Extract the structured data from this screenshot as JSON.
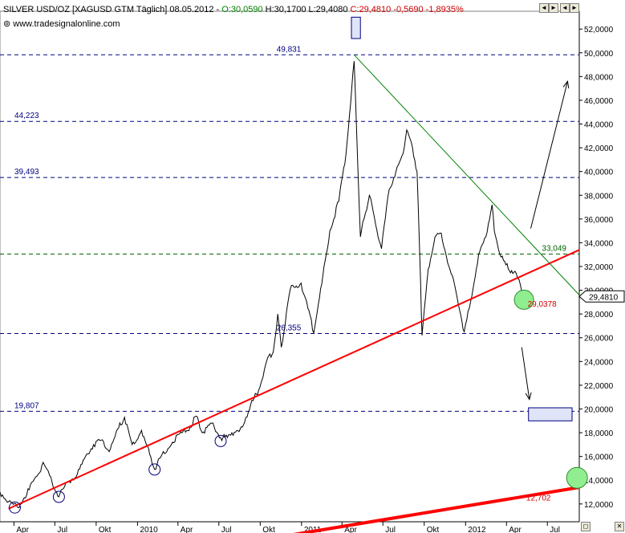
{
  "header": {
    "symbol": "SILVER USD/OZ [XAGUSD GTM  Täglich] 08.05.2012 - ",
    "open": "O:30,0590",
    "high_low": " H:30,1700 L:29,4080 ",
    "close": "C:29,4810 -0,5690 -1,8935%",
    "source": "www.tradesignalonline.com"
  },
  "controls": [
    "◄",
    "►",
    "◄",
    "►",
    "◻",
    "✕"
  ],
  "colors": {
    "price": "#000000",
    "trend_support": "#ff0000",
    "trend_resistance": "#008000",
    "level": "#000080",
    "target_box": "#e0e4f8",
    "marker": "#90ee90"
  },
  "chart_data": {
    "type": "line",
    "title": "SILVER USD/OZ [XAGUSD GTM  Täglich] 08.05.2012",
    "y_axis_side": "right",
    "ylim": [
      10.5,
      53.5
    ],
    "y_ticks": [
      "12,0000",
      "14,0000",
      "16,0000",
      "18,0000",
      "20,0000",
      "22,0000",
      "24,0000",
      "26,0000",
      "28,0000",
      "30,0000",
      "32,0000",
      "34,0000",
      "36,0000",
      "38,0000",
      "40,0000",
      "42,0000",
      "44,0000",
      "46,0000",
      "48,0000",
      "50,0000",
      "52,0000"
    ],
    "y_tick_values": [
      12,
      14,
      16,
      18,
      20,
      22,
      24,
      26,
      28,
      30,
      32,
      34,
      36,
      38,
      40,
      42,
      44,
      46,
      48,
      50,
      52
    ],
    "x_ticks": [
      "Apr",
      "Jul",
      "Okt",
      "2010",
      "Apr",
      "Jul",
      "Okt",
      "2011",
      "Apr",
      "Jul",
      "Okt",
      "2012",
      "Apr",
      "Jul"
    ],
    "x_tick_dates": [
      "2009-04-01",
      "2009-07-01",
      "2009-10-01",
      "2010-01-01",
      "2010-04-01",
      "2010-07-01",
      "2010-10-01",
      "2011-01-01",
      "2011-04-01",
      "2011-07-01",
      "2011-10-01",
      "2012-01-01",
      "2012-04-01",
      "2012-07-01"
    ],
    "x_range": [
      "2009-03-01",
      "2012-09-10"
    ],
    "current_price": "29,4810",
    "current_value": 29.481,
    "series": [
      {
        "points": [
          [
            "2009-03-01",
            13.0
          ],
          [
            "2009-03-20",
            12.2
          ],
          [
            "2009-04-10",
            11.7
          ],
          [
            "2009-05-05",
            13.2
          ],
          [
            "2009-05-25",
            14.5
          ],
          [
            "2009-06-05",
            15.5
          ],
          [
            "2009-06-25",
            13.8
          ],
          [
            "2009-07-10",
            12.6
          ],
          [
            "2009-07-28",
            13.8
          ],
          [
            "2009-08-20",
            14.5
          ],
          [
            "2009-09-10",
            16.2
          ],
          [
            "2009-09-25",
            17.0
          ],
          [
            "2009-10-15",
            17.4
          ],
          [
            "2009-10-30",
            16.4
          ],
          [
            "2009-11-20",
            18.4
          ],
          [
            "2009-12-03",
            19.3
          ],
          [
            "2009-12-20",
            17.0
          ],
          [
            "2010-01-10",
            18.2
          ],
          [
            "2010-01-28",
            16.2
          ],
          [
            "2010-02-08",
            14.9
          ],
          [
            "2010-02-25",
            16.2
          ],
          [
            "2010-03-20",
            17.2
          ],
          [
            "2010-04-10",
            18.0
          ],
          [
            "2010-04-28",
            18.5
          ],
          [
            "2010-05-12",
            19.4
          ],
          [
            "2010-05-25",
            18.0
          ],
          [
            "2010-06-15",
            18.8
          ],
          [
            "2010-07-05",
            17.6
          ],
          [
            "2010-07-20",
            17.6
          ],
          [
            "2010-07-30",
            18.0
          ],
          [
            "2010-08-15",
            18.1
          ],
          [
            "2010-08-30",
            19.3
          ],
          [
            "2010-09-15",
            20.7
          ],
          [
            "2010-09-30",
            21.8
          ],
          [
            "2010-10-15",
            24.0
          ],
          [
            "2010-10-30",
            24.8
          ],
          [
            "2010-11-09",
            28.0
          ],
          [
            "2010-11-17",
            25.2
          ],
          [
            "2010-12-07",
            30.1
          ],
          [
            "2010-12-31",
            30.6
          ],
          [
            "2011-01-15",
            28.5
          ],
          [
            "2011-01-28",
            26.4
          ],
          [
            "2011-02-15",
            30.5
          ],
          [
            "2011-03-05",
            35.0
          ],
          [
            "2011-03-25",
            37.5
          ],
          [
            "2011-04-10",
            41.5
          ],
          [
            "2011-04-28",
            49.3
          ],
          [
            "2011-05-03",
            44.0
          ],
          [
            "2011-05-12",
            34.5
          ],
          [
            "2011-05-20",
            36.0
          ],
          [
            "2011-06-01",
            38.0
          ],
          [
            "2011-06-15",
            35.5
          ],
          [
            "2011-06-28",
            33.5
          ],
          [
            "2011-07-15",
            38.5
          ],
          [
            "2011-07-30",
            40.0
          ],
          [
            "2011-08-15",
            41.5
          ],
          [
            "2011-08-23",
            43.5
          ],
          [
            "2011-09-05",
            42.0
          ],
          [
            "2011-09-15",
            40.0
          ],
          [
            "2011-09-23",
            30.5
          ],
          [
            "2011-09-26",
            26.2
          ],
          [
            "2011-10-10",
            31.8
          ],
          [
            "2011-10-25",
            34.5
          ],
          [
            "2011-11-08",
            34.8
          ],
          [
            "2011-11-25",
            32.0
          ],
          [
            "2011-12-10",
            30.0
          ],
          [
            "2011-12-29",
            26.5
          ],
          [
            "2012-01-15",
            29.5
          ],
          [
            "2012-01-30",
            33.0
          ],
          [
            "2012-02-15",
            34.5
          ],
          [
            "2012-02-29",
            37.2
          ],
          [
            "2012-03-05",
            35.0
          ],
          [
            "2012-03-20",
            32.8
          ],
          [
            "2012-04-05",
            31.8
          ],
          [
            "2012-04-20",
            31.6
          ],
          [
            "2012-05-04",
            30.1
          ],
          [
            "2012-05-08",
            29.48
          ]
        ]
      }
    ],
    "horizontal_levels": [
      {
        "label": "49,831",
        "value": 49.831,
        "label_pos": "center"
      },
      {
        "label": "44,223",
        "value": 44.223,
        "label_pos": "left"
      },
      {
        "label": "39,493",
        "value": 39.493,
        "label_pos": "left"
      },
      {
        "label": "33,049",
        "value": 33.049,
        "label_pos": "right"
      },
      {
        "label": "26,355",
        "value": 26.355,
        "label_pos": "center"
      },
      {
        "label": "19,807",
        "value": 19.807,
        "label_pos": "left"
      }
    ],
    "trend_lines": [
      {
        "name": "support",
        "color": "#ff0000",
        "from": [
          "2009-03-20",
          11.6
        ],
        "to": [
          "2012-09-10",
          33.4
        ],
        "width": 2
      },
      {
        "name": "long-term support",
        "color": "#ff0000",
        "from": [
          "2010-05-01",
          8.0
        ],
        "to": [
          "2012-09-10",
          13.4
        ],
        "width": 4
      },
      {
        "name": "resistance",
        "color": "#008000",
        "from": [
          "2011-04-28",
          49.83
        ],
        "to": [
          "2012-09-10",
          29.6
        ],
        "width": 1
      }
    ],
    "annotations": [
      {
        "label": "29,0378",
        "value": 29.0378,
        "date": "2012-05-18",
        "color": "#d00000"
      },
      {
        "label": "12,702",
        "value": 12.702,
        "date": "2012-05-15",
        "color": "#d00000"
      }
    ],
    "touch_points": [
      [
        "2009-04-03",
        11.7
      ],
      [
        "2009-07-10",
        12.6
      ],
      [
        "2010-02-08",
        14.9
      ],
      [
        "2010-07-05",
        17.3
      ]
    ],
    "target_boxes": [
      {
        "from": [
          "2011-04-22",
          53.0
        ],
        "to": [
          "2011-05-12",
          51.2
        ]
      },
      {
        "from": [
          "2012-05-20",
          20.1
        ],
        "to": [
          "2012-08-25",
          19.0
        ]
      }
    ],
    "green_markers": [
      {
        "at": [
          "2012-05-10",
          29.2
        ],
        "radius": 12
      },
      {
        "at": [
          "2012-09-05",
          14.2
        ],
        "radius": 13
      }
    ],
    "arrows": [
      {
        "from": [
          "2012-05-25",
          35.2
        ],
        "to": [
          "2012-08-15",
          47.6
        ]
      },
      {
        "from": [
          "2012-05-05",
          25.2
        ],
        "to": [
          "2012-05-22",
          20.8
        ]
      }
    ]
  }
}
